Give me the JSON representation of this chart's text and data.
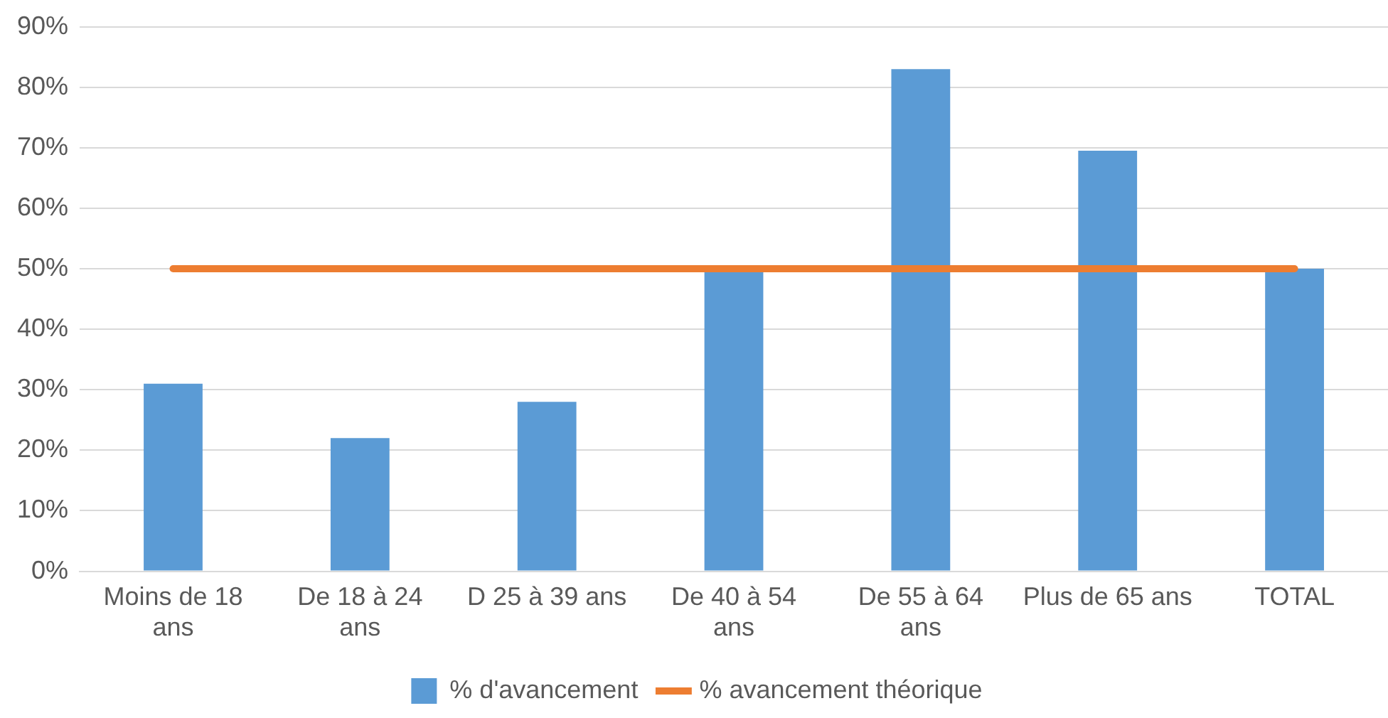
{
  "chart_data": {
    "type": "bar",
    "categories": [
      "Moins de 18 ans",
      "De 18 à 24 ans",
      "D 25 à 39 ans",
      "De 40 à 54 ans",
      "De 55 à 64 ans",
      "Plus de 65 ans",
      "TOTAL"
    ],
    "series": [
      {
        "name": "% d'avancement",
        "color": "#5b9bd5",
        "values": [
          31,
          22,
          28,
          50,
          83,
          69.5,
          50
        ]
      },
      {
        "name": "% avancement théorique",
        "type": "line",
        "color": "#ed7d31",
        "values": [
          50,
          50,
          50,
          50,
          50,
          50,
          50
        ]
      }
    ],
    "ylim": [
      0,
      90
    ],
    "yticks": [
      {
        "value": 0,
        "label": "0%"
      },
      {
        "value": 10,
        "label": "10%"
      },
      {
        "value": 20,
        "label": "20%"
      },
      {
        "value": 30,
        "label": "30%"
      },
      {
        "value": 40,
        "label": "40%"
      },
      {
        "value": 50,
        "label": "50%"
      },
      {
        "value": 60,
        "label": "60%"
      },
      {
        "value": 70,
        "label": "70%"
      },
      {
        "value": 80,
        "label": "80%"
      },
      {
        "value": 90,
        "label": "90%"
      }
    ],
    "grid": "y",
    "legend": "bottom",
    "marker": "none"
  }
}
